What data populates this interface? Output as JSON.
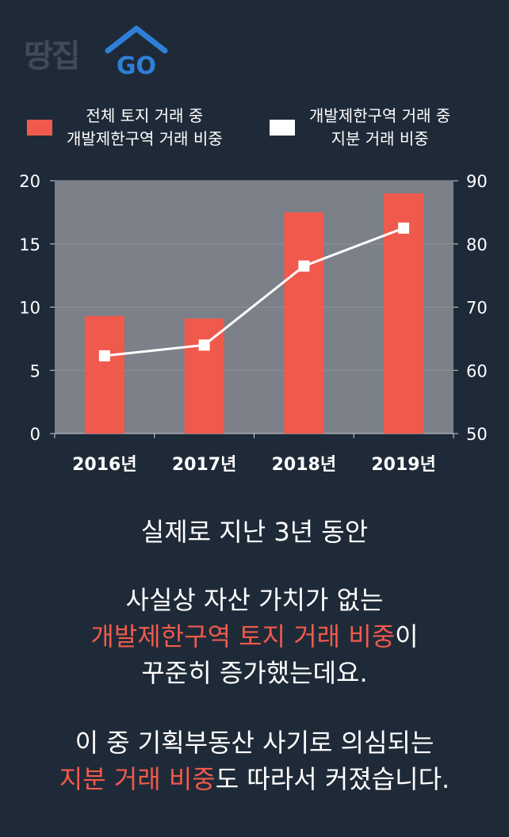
{
  "logo": {
    "text": "땅집",
    "go": "GO"
  },
  "colors": {
    "background": "#1f2a38",
    "plot_bg": "#7b8089",
    "bar": "#f05a4c",
    "line": "#ffffff",
    "highlight": "#f05a4c",
    "logo_blue": "#2f7fd9"
  },
  "legend": [
    {
      "label": "전체 토지 거래 중\n개발제한구역 거래 비중",
      "color": "#f05a4c"
    },
    {
      "label": "개발제한구역 거래 중\n지분 거래 비중",
      "color": "#ffffff"
    }
  ],
  "chart_data": {
    "type": "bar",
    "categories": [
      "2016년",
      "2017년",
      "2018년",
      "2019년"
    ],
    "series": [
      {
        "name": "전체 토지 거래 중 개발제한구역 거래 비중",
        "type": "bar",
        "axis": "left",
        "values": [
          9.3,
          9.1,
          17.5,
          19.0
        ]
      },
      {
        "name": "개발제한구역 거래 중 지분 거래 비중",
        "type": "line",
        "axis": "right",
        "values": [
          62.3,
          64.0,
          76.5,
          82.5
        ]
      }
    ],
    "y_left": {
      "min": 0,
      "max": 20,
      "ticks": [
        0,
        5,
        10,
        15,
        20
      ]
    },
    "y_right": {
      "min": 50,
      "max": 90,
      "ticks": [
        50,
        60,
        70,
        80,
        90
      ]
    },
    "grid": true,
    "legend_position": "top"
  },
  "story": {
    "line1": "실제로 지난 3년 동안",
    "p2_line1": "사실상 자산 가치가 없는",
    "p2_hl": "개발제한구역 토지 거래 비중",
    "p2_after": "이",
    "p2_line3": "꾸준히 증가했는데요.",
    "p3_line1": "이 중 기획부동산 사기로 의심되는",
    "p3_hl": "지분 거래 비중",
    "p3_after": "도 따라서 커졌습니다."
  }
}
